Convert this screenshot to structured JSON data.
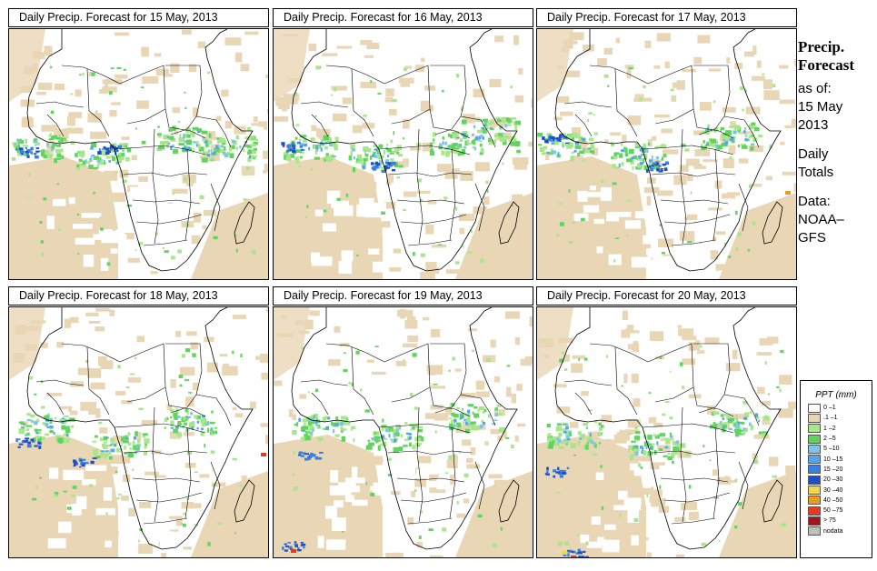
{
  "panels": [
    {
      "title": "Daily Precip. Forecast for  15 May, 2013",
      "variant": 0
    },
    {
      "title": "Daily Precip. Forecast for  16 May, 2013",
      "variant": 1
    },
    {
      "title": "Daily Precip. Forecast for  17 May, 2013",
      "variant": 2
    },
    {
      "title": "Daily Precip. Forecast for  18 May, 2013",
      "variant": 3
    },
    {
      "title": "Daily Precip. Forecast for  19 May, 2013",
      "variant": 4
    },
    {
      "title": "Daily Precip. Forecast for  20 May, 2013",
      "variant": 5
    }
  ],
  "sidebar": {
    "heading_line1": "Precip.",
    "heading_line2": "Forecast",
    "as_of_label": "as of:",
    "as_of_day_month": "15 May",
    "as_of_year": "2013",
    "totals_line1": "Daily",
    "totals_line2": "Totals",
    "data_label": "Data:",
    "data_source_line1": "NOAA–",
    "data_source_line2": "GFS"
  },
  "legend": {
    "title": "PPT (mm)",
    "items": [
      {
        "label": "0 –1",
        "color": "#ffffff"
      },
      {
        "label": ".1 –1",
        "color": "#e8d6b5"
      },
      {
        "label": "1 –2",
        "color": "#a8e68c"
      },
      {
        "label": "2 –5",
        "color": "#5fd45f"
      },
      {
        "label": "5 –10",
        "color": "#7fc4ea"
      },
      {
        "label": "10 –15",
        "color": "#56a5e6"
      },
      {
        "label": "15 –20",
        "color": "#3a80de"
      },
      {
        "label": "20 –30",
        "color": "#1f4fc8"
      },
      {
        "label": "30 –40",
        "color": "#f5d54a"
      },
      {
        "label": "40 –50",
        "color": "#f09a26"
      },
      {
        "label": "50 –75",
        "color": "#e63b1e"
      },
      {
        "label": "> 75",
        "color": "#a3141c"
      },
      {
        "label": "nodata",
        "color": "#bfbfbf"
      }
    ]
  }
}
